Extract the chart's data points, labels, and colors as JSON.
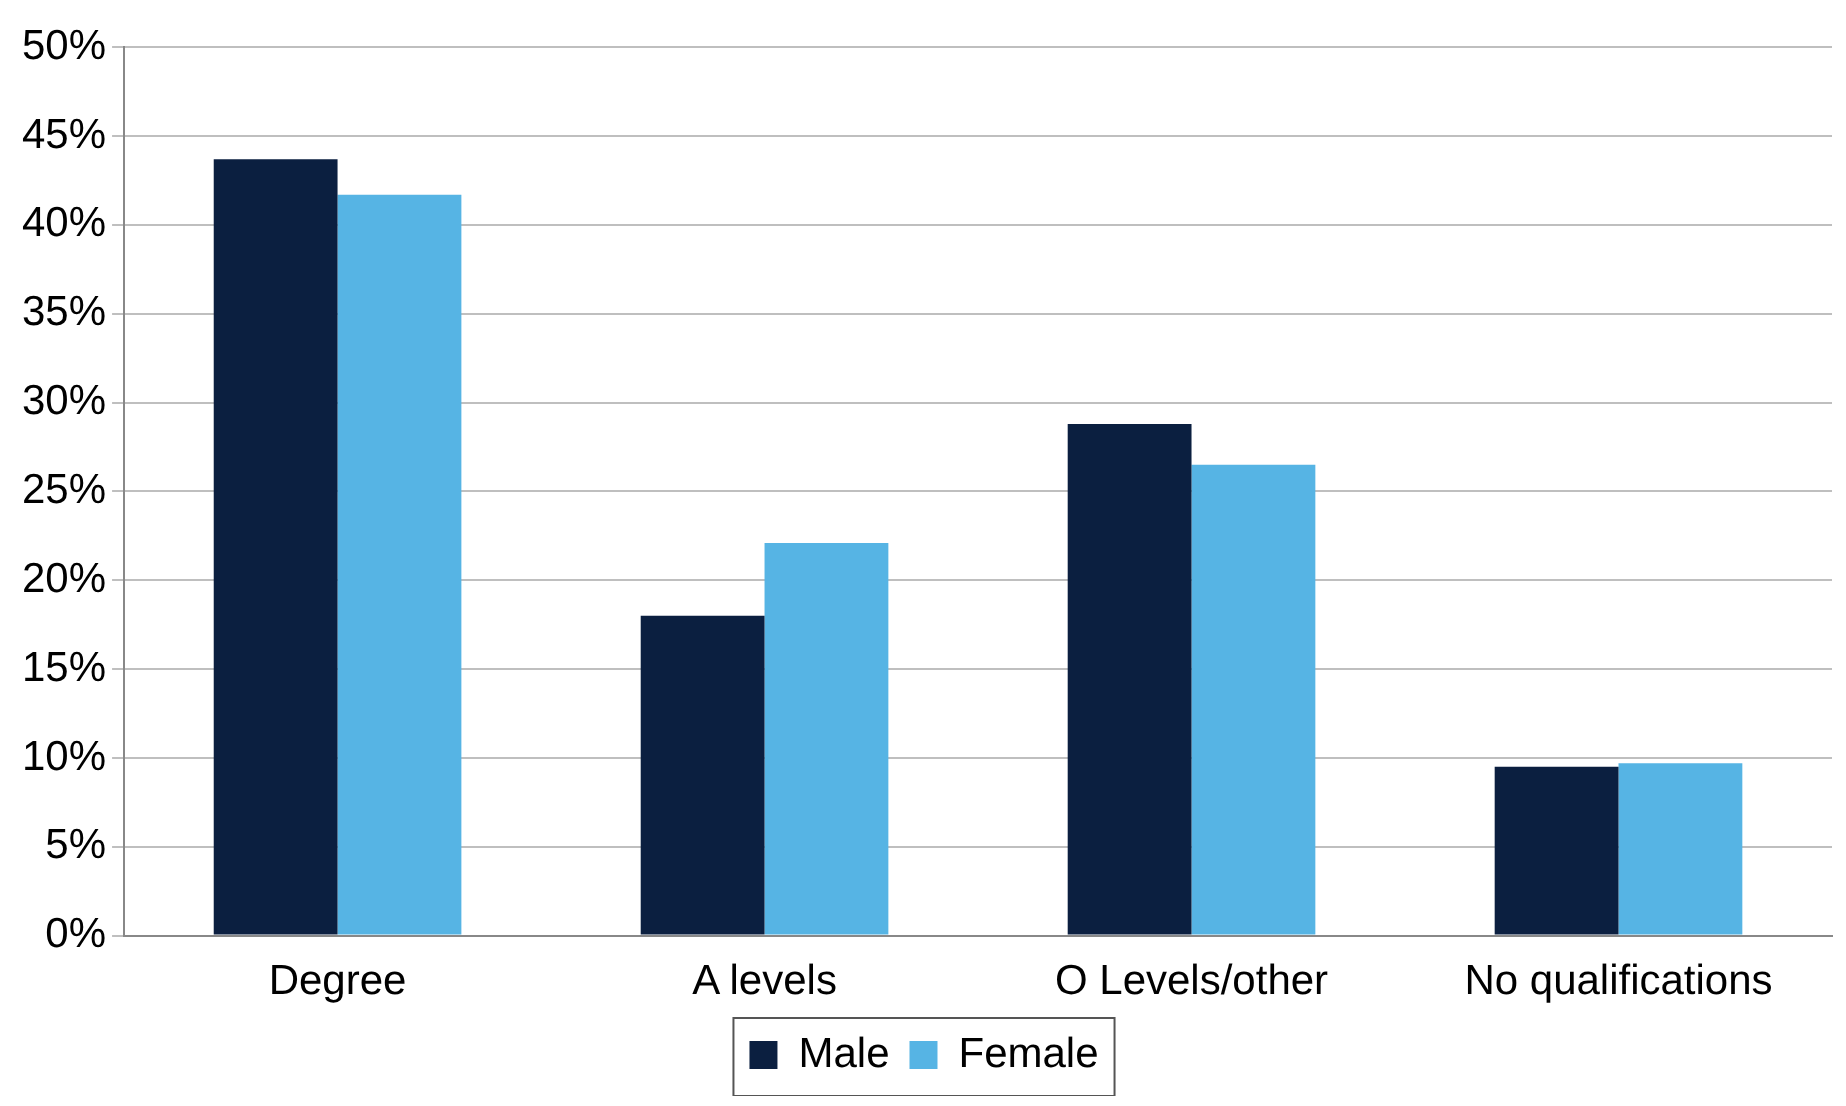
{
  "chart_data": {
    "type": "bar",
    "categories": [
      "Degree",
      "A levels",
      "O Levels/other",
      "No qualifications"
    ],
    "series": [
      {
        "name": "Male",
        "color": "#0b1f40",
        "values": [
          43.7,
          18.0,
          28.8,
          9.5
        ]
      },
      {
        "name": "Female",
        "color": "#56b4e4",
        "values": [
          41.7,
          22.1,
          26.5,
          9.7
        ]
      }
    ],
    "ylim": [
      0,
      50
    ],
    "yticks": [
      {
        "value": 0,
        "label": "0%"
      },
      {
        "value": 5,
        "label": "5%"
      },
      {
        "value": 10,
        "label": "10%"
      },
      {
        "value": 15,
        "label": "15%"
      },
      {
        "value": 20,
        "label": "20%"
      },
      {
        "value": 25,
        "label": "25%"
      },
      {
        "value": 30,
        "label": "30%"
      },
      {
        "value": 35,
        "label": "35%"
      },
      {
        "value": 40,
        "label": "40%"
      },
      {
        "value": 45,
        "label": "45%"
      },
      {
        "value": 50,
        "label": "50%"
      }
    ],
    "grid": "y",
    "legend": "bottom"
  }
}
